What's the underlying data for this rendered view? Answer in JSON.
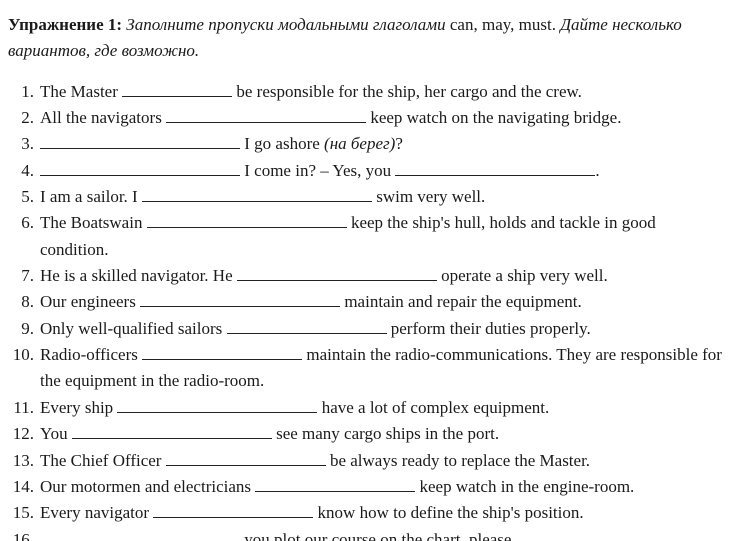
{
  "header": {
    "label": "Упражнение 1:",
    "instruction_a": "Заполните пропуски модальными глаголами ",
    "modals": "can, may, must",
    "instruction_b": "Дайте несколько вариантов, где возможно."
  },
  "q1": {
    "a": "The Master ",
    "b": " be responsible for the ship, her cargo and the crew."
  },
  "q2": {
    "a": "All the navigators ",
    "b": " keep watch on the navigating bridge."
  },
  "q3": {
    "a": " I go ashore ",
    "paren": "(на берег)",
    "b": "?"
  },
  "q4": {
    "a": " I come in? – Yes, you ",
    "b": "."
  },
  "q5": {
    "a": "I am a sailor. I ",
    "b": " swim very well."
  },
  "q6": {
    "a": "The Boatswain ",
    "b": " keep the ship's hull, holds and tackle in good condition."
  },
  "q7": {
    "a": "He is a skilled navigator. He ",
    "b": " operate a ship very well."
  },
  "q8": {
    "a": "Our engineers ",
    "b": " maintain and repair the equipment."
  },
  "q9": {
    "a": "Only well-qualified sailors ",
    "b": " perform their duties properly."
  },
  "q10": {
    "a": "Radio-officers ",
    "b": " maintain the radio-communications. They are responsible for the equipment in the radio-room."
  },
  "q11": {
    "a": "Every ship ",
    "b": " have a lot of complex equipment."
  },
  "q12": {
    "a": "You ",
    "b": " see many cargo ships in the port."
  },
  "q13": {
    "a": "The Chief Officer ",
    "b": " be always ready to replace the Master."
  },
  "q14": {
    "a": "Our motormen and electricians ",
    "b": " keep watch in the engine-room."
  },
  "q15": {
    "a": "Every navigator ",
    "b": " know how to define the ship's position."
  },
  "q16": {
    "a": " you plot our course on the chart, please."
  }
}
